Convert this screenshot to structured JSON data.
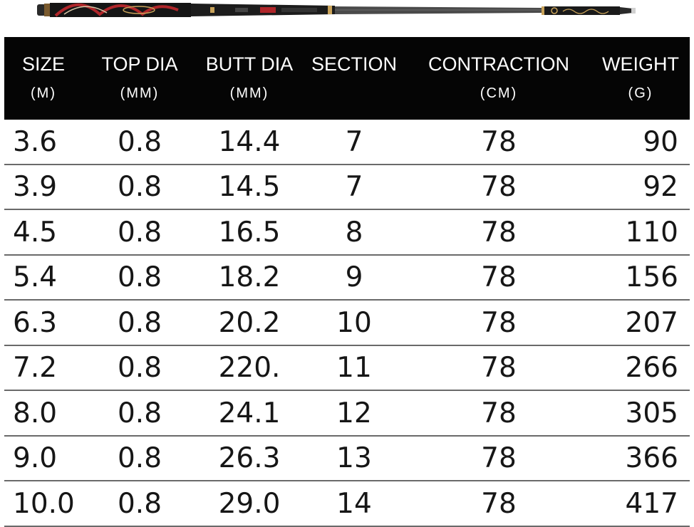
{
  "colors": {
    "header_bg": "#050505",
    "header_text": "#ffffff",
    "row_divider": "#6a6a6a",
    "cell_text": "#161616",
    "rod_dark": "#1a1a1a",
    "rod_red": "#b0262a",
    "rod_gold": "#c9a35a",
    "rod_carbon": "#4a4a4a"
  },
  "rod_image": {
    "icon": "fishing-rod-icon"
  },
  "table": {
    "headers": [
      {
        "label": "SIZE",
        "unit": "(M)"
      },
      {
        "label": "TOP DIA",
        "unit": "(MM)"
      },
      {
        "label": "BUTT DIA",
        "unit": "(MM)"
      },
      {
        "label": "SECTION",
        "unit": ""
      },
      {
        "label": "CONTRACTION",
        "unit": "(CM)"
      },
      {
        "label": "WEIGHT",
        "unit": "(G)"
      }
    ],
    "rows": [
      [
        "3.6",
        "0.8",
        "14.4",
        "7",
        "78",
        "90"
      ],
      [
        "3.9",
        "0.8",
        "14.5",
        "7",
        "78",
        "92"
      ],
      [
        "4.5",
        "0.8",
        "16.5",
        "8",
        "78",
        "110"
      ],
      [
        "5.4",
        "0.8",
        "18.2",
        "9",
        "78",
        "156"
      ],
      [
        "6.3",
        "0.8",
        "20.2",
        "10",
        "78",
        "207"
      ],
      [
        "7.2",
        "0.8",
        "220.",
        "11",
        "78",
        "266"
      ],
      [
        "8.0",
        "0.8",
        "24.1",
        "12",
        "78",
        "305"
      ],
      [
        "9.0",
        "0.8",
        "26.3",
        "13",
        "78",
        "366"
      ],
      [
        "10.0",
        "0.8",
        "29.0",
        "14",
        "78",
        "417"
      ]
    ]
  }
}
